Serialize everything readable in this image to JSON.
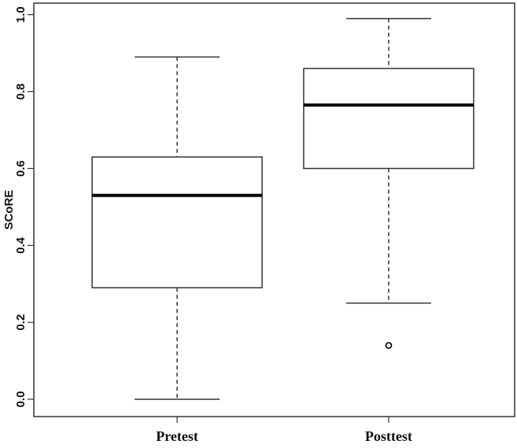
{
  "chart_data": {
    "type": "box",
    "y_label": "SCoRE",
    "categories": [
      "Pretest",
      "Posttest"
    ],
    "boxes": [
      {
        "min": 0.0,
        "q1": 0.29,
        "median": 0.53,
        "q3": 0.63,
        "max": 0.89,
        "outliers": []
      },
      {
        "min": 0.25,
        "q1": 0.6,
        "median": 0.765,
        "q3": 0.86,
        "max": 0.99,
        "outliers": [
          0.14
        ]
      }
    ],
    "ylim": [
      -0.045,
      1.03
    ],
    "yticks": [
      {
        "value": 0,
        "label": "0.0"
      },
      0.2,
      0.4,
      0.6,
      0.8,
      {
        "value": 1,
        "label": "1.0"
      }
    ],
    "color": "#ffffff",
    "grid": false
  }
}
